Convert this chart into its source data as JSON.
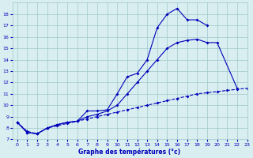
{
  "bg_color": "#d8eef0",
  "grid_color": "#a0c8cc",
  "line_color": "#0000bb",
  "xlabel": "Graphe des températures (°c)",
  "xlim": [
    -0.5,
    23
  ],
  "ylim": [
    7,
    19
  ],
  "yticks": [
    7,
    8,
    9,
    10,
    11,
    12,
    13,
    14,
    15,
    16,
    17,
    18
  ],
  "xticks": [
    0,
    1,
    2,
    3,
    4,
    5,
    6,
    7,
    8,
    9,
    10,
    11,
    12,
    13,
    14,
    15,
    16,
    17,
    18,
    19,
    20,
    21,
    22,
    23
  ],
  "line1_x": [
    0,
    1,
    2,
    3,
    4,
    5,
    6,
    7,
    8,
    9,
    10,
    11,
    12,
    13,
    14,
    15,
    16,
    17,
    18,
    19
  ],
  "line1_y": [
    8.5,
    7.6,
    7.5,
    8.0,
    8.3,
    8.5,
    8.6,
    9.5,
    9.5,
    9.6,
    11.0,
    12.5,
    12.8,
    14.0,
    16.8,
    18.0,
    18.5,
    17.5,
    17.5,
    17.0
  ],
  "line2_x": [
    0,
    1,
    2,
    3,
    4,
    5,
    6,
    7,
    8,
    9,
    10,
    11,
    12,
    13,
    14,
    15,
    16,
    17,
    18,
    19,
    20,
    22
  ],
  "line2_y": [
    8.5,
    7.6,
    7.5,
    8.0,
    8.3,
    8.5,
    8.6,
    9.0,
    9.2,
    9.5,
    10.0,
    11.0,
    12.0,
    13.0,
    14.0,
    15.0,
    15.5,
    15.7,
    15.8,
    15.5,
    15.5,
    11.5
  ],
  "line3_x": [
    0,
    1,
    2,
    3,
    4,
    5,
    6,
    7,
    8,
    9,
    10,
    11,
    12,
    13,
    14,
    15,
    16,
    17,
    18,
    19,
    20,
    21,
    22,
    23
  ],
  "line3_y": [
    8.5,
    7.7,
    7.5,
    8.0,
    8.2,
    8.4,
    8.6,
    8.8,
    9.0,
    9.2,
    9.4,
    9.6,
    9.8,
    10.0,
    10.2,
    10.4,
    10.6,
    10.8,
    11.0,
    11.1,
    11.2,
    11.3,
    11.4,
    11.5
  ]
}
